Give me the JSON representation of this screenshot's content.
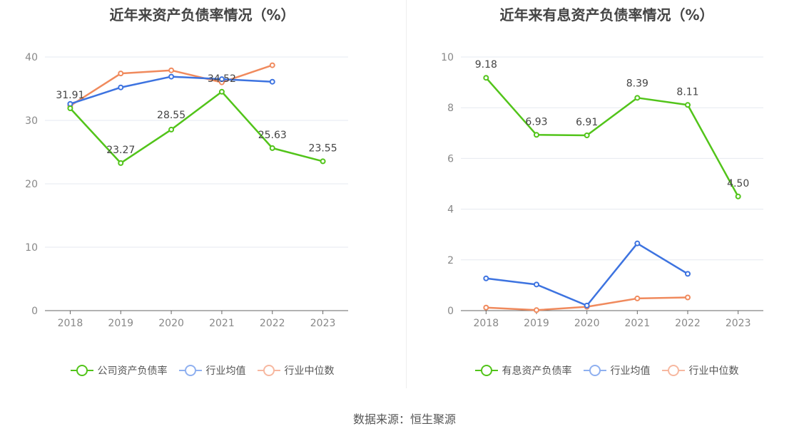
{
  "source": "数据来源：恒生聚源",
  "chart_data": [
    {
      "type": "line",
      "title": "近年来资产负债率情况（%）",
      "categories": [
        "2018",
        "2019",
        "2020",
        "2021",
        "2022",
        "2023"
      ],
      "ylim": [
        0,
        40
      ],
      "yticks": [
        0,
        10,
        20,
        30,
        40
      ],
      "grid": true,
      "legend_position": "bottom",
      "series": [
        {
          "name": "公司资产负债率",
          "color": "#52c41a",
          "values": [
            31.91,
            23.27,
            28.55,
            34.52,
            25.63,
            23.55
          ],
          "labels": [
            "31.91",
            "23.27",
            "28.55",
            "34.52",
            "25.63",
            "23.55"
          ]
        },
        {
          "name": "行业均值",
          "color": "#3d73e0",
          "values": [
            32.6,
            35.2,
            36.9,
            36.5,
            36.1,
            null
          ]
        },
        {
          "name": "行业中位数",
          "color": "#f08a5d",
          "values": [
            32.3,
            37.4,
            37.9,
            36.0,
            38.7,
            null
          ]
        }
      ]
    },
    {
      "type": "line",
      "title": "近年来有息资产负债率情况（%）",
      "categories": [
        "2018",
        "2019",
        "2020",
        "2021",
        "2022",
        "2023"
      ],
      "ylim": [
        0,
        10
      ],
      "yticks": [
        0,
        2,
        4,
        6,
        8,
        10
      ],
      "grid": true,
      "legend_position": "bottom",
      "series": [
        {
          "name": "有息资产负债率",
          "color": "#52c41a",
          "values": [
            9.18,
            6.93,
            6.91,
            8.39,
            8.11,
            4.5
          ],
          "labels": [
            "9.18",
            "6.93",
            "6.91",
            "8.39",
            "8.11",
            "4.50"
          ]
        },
        {
          "name": "行业均值",
          "color": "#3d73e0",
          "values": [
            1.27,
            1.03,
            0.2,
            2.65,
            1.45,
            null
          ]
        },
        {
          "name": "行业中位数",
          "color": "#f08a5d",
          "values": [
            0.12,
            0.02,
            0.15,
            0.48,
            0.52,
            null
          ]
        }
      ]
    }
  ]
}
